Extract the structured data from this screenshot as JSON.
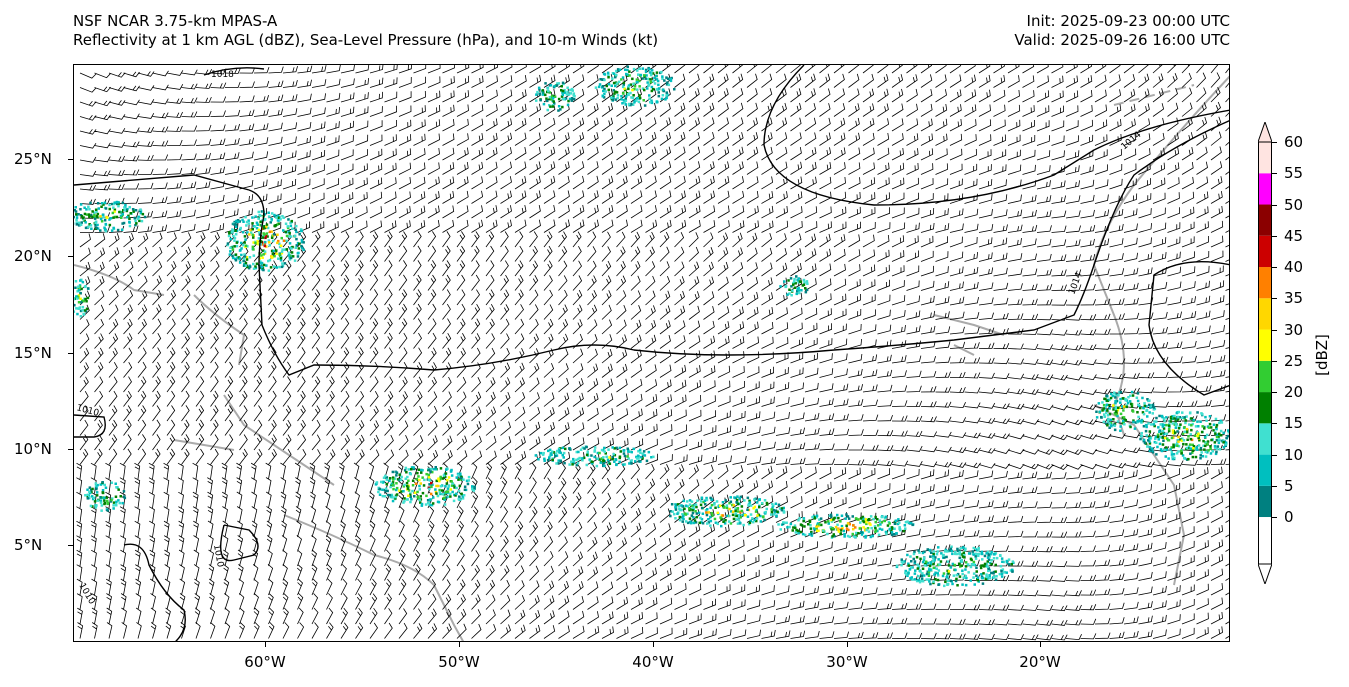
{
  "header": {
    "model": "NSF NCAR 3.75-km MPAS-A",
    "fields": "Reflectivity at 1 km AGL (dBZ), Sea-Level Pressure (hPa), and 10-m Winds (kt)",
    "init": "Init: 2025-09-23 00:00 UTC",
    "valid": "Valid: 2025-09-26 16:00 UTC"
  },
  "axes": {
    "lon_labels": [
      "60°W",
      "50°W",
      "40°W",
      "30°W",
      "20°W"
    ],
    "lat_labels": [
      "25°N",
      "20°N",
      "15°N",
      "10°N",
      "5°N"
    ]
  },
  "contours": {
    "labels": [
      "1018",
      "1014",
      "1014",
      "1010",
      "1010",
      "1010"
    ]
  },
  "colorbar": {
    "title": "[dBZ]",
    "ticks": [
      "0",
      "5",
      "10",
      "15",
      "20",
      "25",
      "30",
      "35",
      "40",
      "45",
      "50",
      "55",
      "60"
    ],
    "colors": [
      "#008080",
      "#00bfbf",
      "#40e0d0",
      "#008000",
      "#32cd32",
      "#ffff00",
      "#ffd700",
      "#ff8000",
      "#cc0000",
      "#8b0000",
      "#ff00ff",
      "#ffe4e1"
    ]
  }
}
